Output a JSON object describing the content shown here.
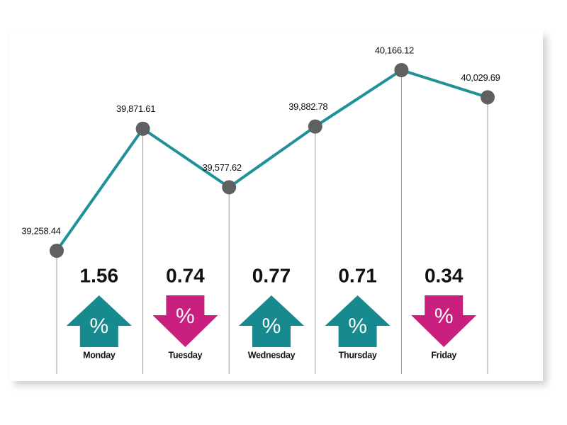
{
  "chart_data": {
    "type": "line",
    "categories": [
      null,
      "Monday",
      "Tuesday",
      "Wednesday",
      "Thursday",
      "Friday"
    ],
    "values": [
      39258.44,
      39871.61,
      39577.62,
      39882.78,
      40166.12,
      40029.69
    ],
    "value_labels": [
      "39,258.44",
      "39,871.61",
      "39,577.62",
      "39,882.78",
      "40,166.12",
      "40,029.69"
    ],
    "color": "#1f9199",
    "point_color": "#5f6062",
    "changes": {
      "values": [
        1.56,
        0.74,
        0.77,
        0.71,
        0.34
      ],
      "directions": [
        "up",
        "down",
        "up",
        "up",
        "down"
      ],
      "symbol": "%",
      "up_color": "#178a8f",
      "down_color": "#c91f7e"
    }
  }
}
